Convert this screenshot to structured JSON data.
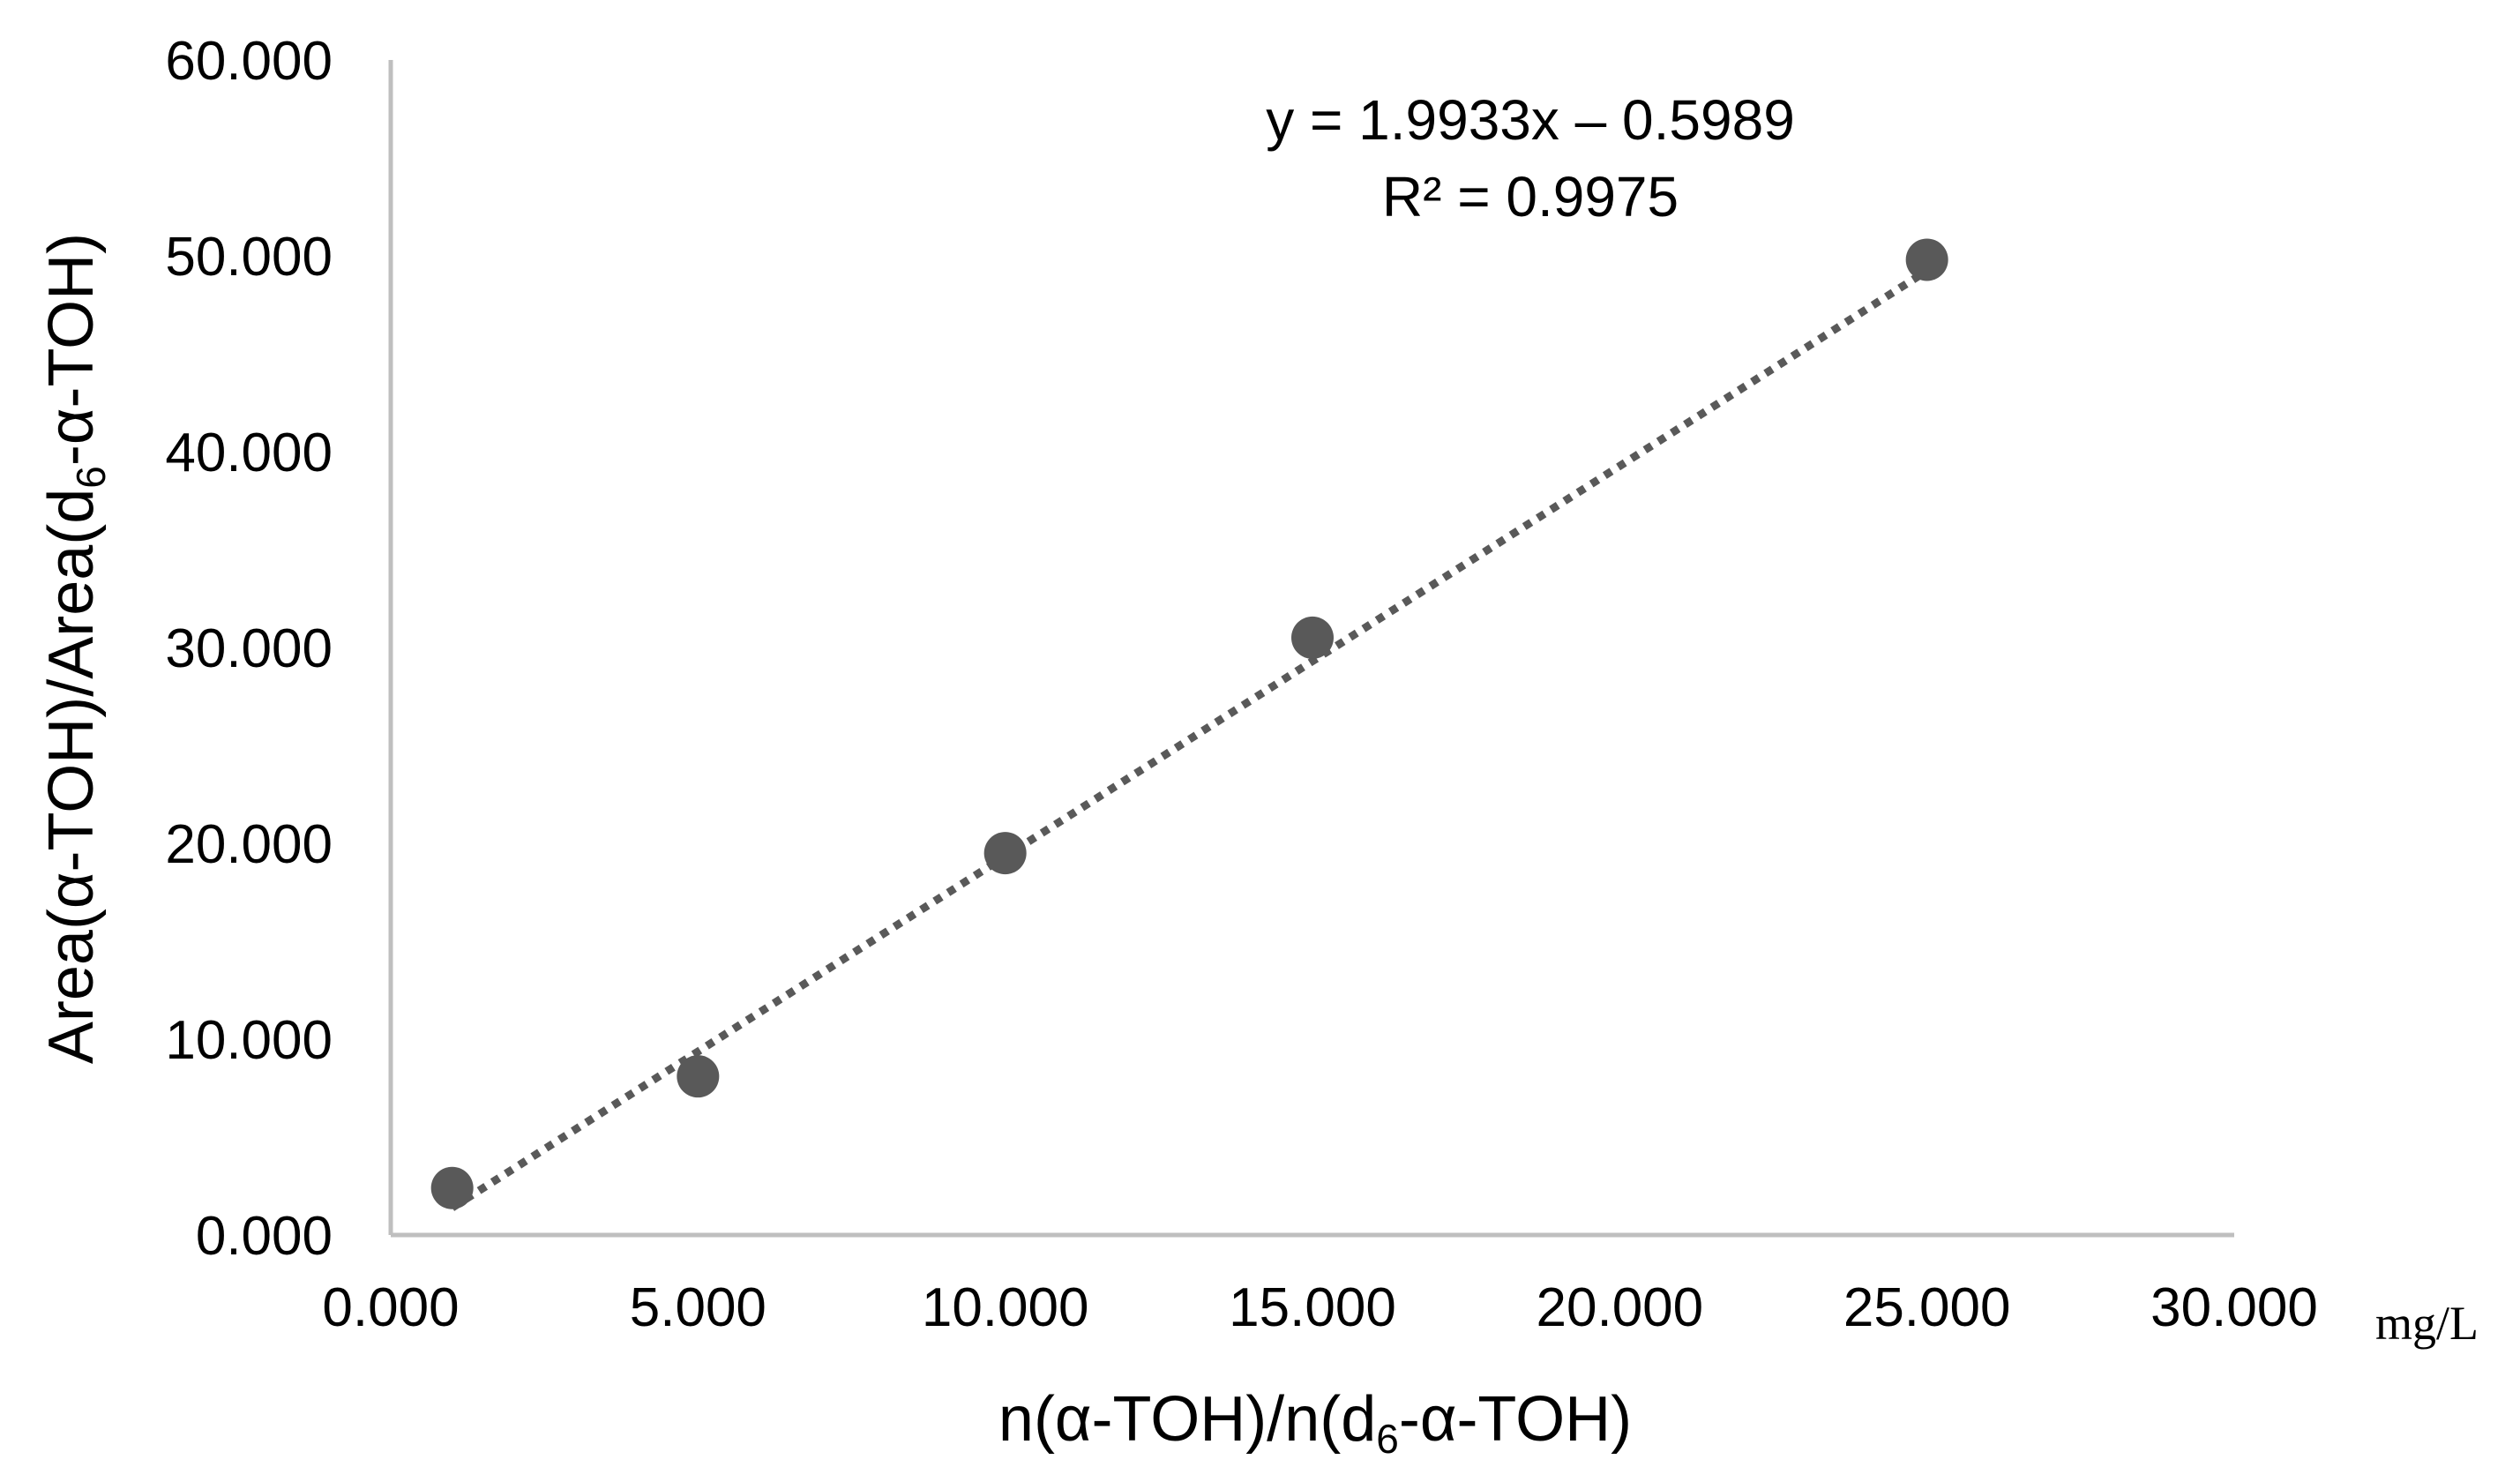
{
  "chart_data": {
    "type": "scatter",
    "x": [
      1.0,
      5.0,
      10.0,
      15.0,
      25.0
    ],
    "y": [
      2.4,
      8.1,
      19.5,
      30.5,
      49.8
    ],
    "xlim": [
      0,
      30
    ],
    "ylim": [
      0,
      60
    ],
    "x_ticks": [
      "0.000",
      "5.000",
      "10.000",
      "15.000",
      "20.000",
      "25.000",
      "30.000"
    ],
    "y_ticks": [
      "0.000",
      "10.000",
      "20.000",
      "30.000",
      "40.000",
      "50.000",
      "60.000"
    ],
    "xlabel": {
      "pre": "n(α-TOH)/n(d",
      "sub": "6",
      "post": "-α-TOH)"
    },
    "ylabel": {
      "pre": "Area(α-TOH)/Area(d",
      "sub": "6",
      "post": "-α-TOH)"
    },
    "x_unit": "mg/L",
    "trendline": {
      "type": "linear",
      "slope": 1.9933,
      "intercept": -0.5989,
      "x_range": [
        1.0,
        25.0
      ],
      "style": "dotted"
    },
    "annotations": [
      "y = 1.9933x – 0.5989",
      "R² = 0.9975"
    ],
    "grid": false,
    "legend": "none",
    "colors": {
      "marker": "#595959",
      "trendline": "#595959",
      "axis": "#bfbfbf"
    }
  }
}
